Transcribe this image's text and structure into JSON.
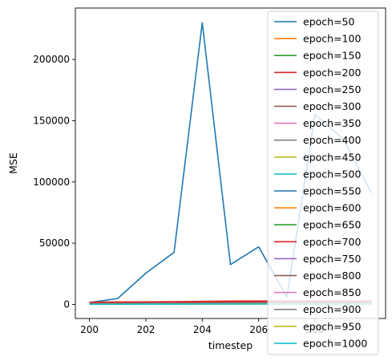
{
  "chart_data": {
    "type": "line",
    "title": "",
    "xlabel": "timestep",
    "ylabel": "MSE",
    "xlim": [
      199.5,
      210.5
    ],
    "ylim": [
      -11500,
      242000
    ],
    "xticks": [
      200,
      202,
      204,
      206,
      208
    ],
    "yticks": [
      0,
      50000,
      100000,
      150000,
      200000
    ],
    "grid": false,
    "legend_position": "top-right",
    "x": [
      200,
      201,
      202,
      203,
      204,
      205,
      206,
      207,
      208,
      209,
      210
    ],
    "series": [
      {
        "name": "epoch=50",
        "color": "#1f77b4",
        "values": [
          1500,
          4800,
          25500,
          42500,
          230000,
          32500,
          47000,
          6000,
          155000,
          135000,
          91000
        ]
      },
      {
        "name": "epoch=100",
        "color": "#ff7f0e",
        "values": [
          1200,
          1400,
          1500,
          1600,
          1800,
          1900,
          2000,
          1900,
          1900,
          1900,
          1900
        ]
      },
      {
        "name": "epoch=150",
        "color": "#2ca02c",
        "values": [
          900,
          1000,
          1100,
          1200,
          1300,
          1400,
          1400,
          1400,
          1400,
          1400,
          1400
        ]
      },
      {
        "name": "epoch=200",
        "color": "#d62728",
        "values": [
          1800,
          2000,
          2100,
          2200,
          2500,
          2700,
          2800,
          2700,
          2700,
          2700,
          2700
        ]
      },
      {
        "name": "epoch=250",
        "color": "#9467bd",
        "values": [
          700,
          700,
          800,
          800,
          900,
          900,
          900,
          900,
          900,
          900,
          900
        ]
      },
      {
        "name": "epoch=300",
        "color": "#8c564b",
        "values": [
          600,
          600,
          700,
          700,
          800,
          800,
          800,
          800,
          800,
          800,
          800
        ]
      },
      {
        "name": "epoch=350",
        "color": "#e377c2",
        "values": [
          500,
          500,
          600,
          600,
          700,
          700,
          700,
          700,
          700,
          700,
          700
        ]
      },
      {
        "name": "epoch=400",
        "color": "#7f7f7f",
        "values": [
          800,
          900,
          900,
          1000,
          1100,
          1100,
          1200,
          1200,
          1200,
          1200,
          1200
        ]
      },
      {
        "name": "epoch=450",
        "color": "#bcbd22",
        "values": [
          400,
          400,
          500,
          500,
          600,
          600,
          600,
          600,
          600,
          600,
          600
        ]
      },
      {
        "name": "epoch=500",
        "color": "#17becf",
        "values": [
          300,
          300,
          400,
          400,
          500,
          500,
          500,
          500,
          500,
          500,
          500
        ]
      },
      {
        "name": "epoch=550",
        "color": "#1f77b4",
        "values": [
          400,
          500,
          500,
          600,
          600,
          700,
          700,
          700,
          700,
          700,
          700
        ]
      },
      {
        "name": "epoch=600",
        "color": "#ff7f0e",
        "values": [
          300,
          400,
          400,
          500,
          500,
          600,
          600,
          600,
          600,
          600,
          600
        ]
      },
      {
        "name": "epoch=650",
        "color": "#2ca02c",
        "values": [
          300,
          300,
          400,
          400,
          500,
          500,
          500,
          500,
          500,
          500,
          500
        ]
      },
      {
        "name": "epoch=700",
        "color": "#d62728",
        "values": [
          1200,
          1300,
          1400,
          1500,
          1600,
          1700,
          1800,
          1800,
          1800,
          1800,
          1800
        ]
      },
      {
        "name": "epoch=750",
        "color": "#9467bd",
        "values": [
          200,
          300,
          300,
          400,
          400,
          500,
          500,
          500,
          500,
          500,
          500
        ]
      },
      {
        "name": "epoch=800",
        "color": "#8c564b",
        "values": [
          200,
          200,
          300,
          300,
          400,
          400,
          400,
          400,
          400,
          400,
          400
        ]
      },
      {
        "name": "epoch=850",
        "color": "#e377c2",
        "values": [
          200,
          200,
          300,
          300,
          300,
          400,
          400,
          400,
          400,
          400,
          400
        ]
      },
      {
        "name": "epoch=900",
        "color": "#7f7f7f",
        "values": [
          600,
          700,
          800,
          900,
          1000,
          1100,
          1200,
          1300,
          1400,
          1500,
          1600
        ]
      },
      {
        "name": "epoch=950",
        "color": "#bcbd22",
        "values": [
          100,
          200,
          200,
          300,
          300,
          300,
          400,
          400,
          400,
          400,
          400
        ]
      },
      {
        "name": "epoch=1000",
        "color": "#17becf",
        "values": [
          100,
          100,
          200,
          200,
          300,
          300,
          300,
          300,
          300,
          300,
          300
        ]
      }
    ]
  }
}
